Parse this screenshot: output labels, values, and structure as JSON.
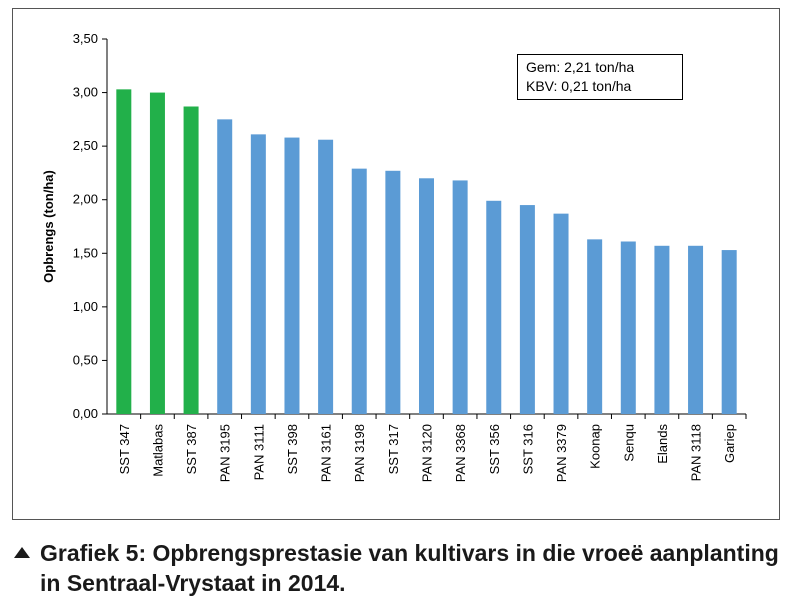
{
  "chart_data": {
    "type": "bar",
    "ylabel": "Opbrengs (ton/ha)",
    "ylim": [
      0,
      3.5
    ],
    "yticks": [
      "0,00",
      "0,50",
      "1,00",
      "1,50",
      "2,00",
      "2,50",
      "3,00",
      "3,50"
    ],
    "categories": [
      "SST 347",
      "Matlabas",
      "SST 387",
      "PAN 3195",
      "PAN 3111",
      "SST 398",
      "PAN 3161",
      "PAN 3198",
      "SST 317",
      "PAN 3120",
      "PAN 3368",
      "SST 356",
      "SST 316",
      "PAN 3379",
      "Koonap",
      "Senqu",
      "Elands",
      "PAN 3118",
      "Gariep"
    ],
    "values": [
      3.03,
      3.0,
      2.87,
      2.75,
      2.61,
      2.58,
      2.56,
      2.29,
      2.27,
      2.2,
      2.18,
      1.99,
      1.95,
      1.87,
      1.63,
      1.61,
      1.57,
      1.57,
      1.53
    ],
    "bar_colors": [
      "#22b04a",
      "#22b04a",
      "#22b04a",
      "#5b9bd5",
      "#5b9bd5",
      "#5b9bd5",
      "#5b9bd5",
      "#5b9bd5",
      "#5b9bd5",
      "#5b9bd5",
      "#5b9bd5",
      "#5b9bd5",
      "#5b9bd5",
      "#5b9bd5",
      "#5b9bd5",
      "#5b9bd5",
      "#5b9bd5",
      "#5b9bd5",
      "#5b9bd5"
    ],
    "grid": false,
    "annotation": [
      "Gem: 2,21 ton/ha",
      "KBV: 0,21 ton/ha"
    ]
  },
  "caption": "Grafiek 5: Opbrengsprestasie van kultivars in die vroeë aanplanting in Sentraal-Vrystaat in 2014.",
  "caption_icon": "triangle-up-icon"
}
